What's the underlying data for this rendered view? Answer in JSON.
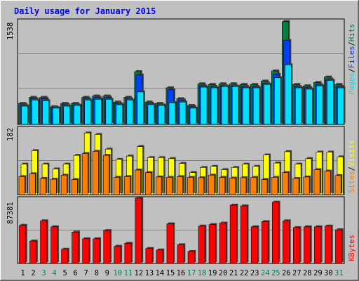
{
  "colors": {
    "background": "#C0C0C0",
    "plot_background": "#C0C0C0",
    "title": "#0000FF",
    "hits": "#008040",
    "files": "#0040FF",
    "pages": "#00E0FF",
    "visits": "#FFFF00",
    "sites": "#FF8000",
    "kbytes": "#FF0000",
    "weekend_label": "#00805C",
    "weekday_label": "#000000"
  },
  "chart_data": [
    {
      "type": "bar",
      "title": "Daily usage for January 2015",
      "ylabel_parts": [
        "Pages",
        "Files",
        "Hits"
      ],
      "ymax_label": "1538",
      "ylim": [
        0,
        1538
      ],
      "categories": [
        "1",
        "2",
        "3",
        "4",
        "5",
        "6",
        "7",
        "8",
        "9",
        "10",
        "11",
        "12",
        "13",
        "14",
        "15",
        "16",
        "17",
        "18",
        "19",
        "20",
        "21",
        "22",
        "23",
        "24",
        "25",
        "26",
        "27",
        "28",
        "29",
        "30",
        "31"
      ],
      "weekend_days": [
        3,
        4,
        10,
        11,
        17,
        18,
        24,
        25,
        31
      ],
      "series": [
        {
          "name": "Hits",
          "values": [
            310,
            400,
            400,
            260,
            310,
            310,
            400,
            420,
            420,
            330,
            400,
            780,
            330,
            310,
            540,
            380,
            280,
            600,
            590,
            600,
            600,
            590,
            590,
            640,
            790,
            1520,
            590,
            570,
            620,
            700,
            590
          ]
        },
        {
          "name": "Files",
          "values": [
            290,
            380,
            380,
            250,
            290,
            290,
            380,
            400,
            400,
            310,
            380,
            730,
            310,
            290,
            510,
            360,
            260,
            570,
            560,
            570,
            570,
            560,
            560,
            610,
            740,
            1240,
            560,
            540,
            590,
            670,
            560
          ]
        },
        {
          "name": "Pages",
          "values": [
            270,
            360,
            350,
            240,
            270,
            280,
            360,
            370,
            370,
            290,
            360,
            480,
            290,
            280,
            320,
            330,
            240,
            550,
            540,
            560,
            560,
            540,
            540,
            590,
            690,
            880,
            540,
            520,
            570,
            650,
            540
          ]
        }
      ]
    },
    {
      "type": "bar",
      "ylabel_parts": [
        "Sites",
        "Visits"
      ],
      "ymax_label": "182",
      "ylim": [
        0,
        182
      ],
      "categories": [
        "1",
        "2",
        "3",
        "4",
        "5",
        "6",
        "7",
        "8",
        "9",
        "10",
        "11",
        "12",
        "13",
        "14",
        "15",
        "16",
        "17",
        "18",
        "19",
        "20",
        "21",
        "22",
        "23",
        "24",
        "25",
        "26",
        "27",
        "28",
        "29",
        "30",
        "31"
      ],
      "series": [
        {
          "name": "Visits",
          "values": [
            83,
            120,
            83,
            70,
            83,
            107,
            168,
            164,
            124,
            96,
            105,
            131,
            101,
            101,
            98,
            85,
            60,
            74,
            77,
            68,
            74,
            83,
            77,
            108,
            86,
            117,
            83,
            98,
            116,
            116,
            103
          ]
        },
        {
          "name": "Sites",
          "values": [
            49,
            57,
            44,
            42,
            53,
            41,
            112,
            118,
            107,
            47,
            49,
            67,
            60,
            48,
            47,
            49,
            47,
            46,
            53,
            47,
            45,
            46,
            47,
            41,
            47,
            60,
            44,
            48,
            68,
            64,
            52
          ]
        }
      ]
    },
    {
      "type": "bar",
      "ylabel_parts": [
        "KBytes"
      ],
      "ymax_label": "87381",
      "ylim": [
        0,
        87381
      ],
      "categories": [
        "1",
        "2",
        "3",
        "4",
        "5",
        "6",
        "7",
        "8",
        "9",
        "10",
        "11",
        "12",
        "13",
        "14",
        "15",
        "16",
        "17",
        "18",
        "19",
        "20",
        "21",
        "22",
        "23",
        "24",
        "25",
        "26",
        "27",
        "28",
        "29",
        "30",
        "31"
      ],
      "series": [
        {
          "name": "KBytes",
          "values": [
            51000,
            30000,
            57000,
            49000,
            19000,
            42000,
            33000,
            33000,
            44000,
            23000,
            27000,
            87381,
            20000,
            18000,
            53000,
            25000,
            16000,
            50000,
            52000,
            54000,
            78000,
            77000,
            49000,
            56000,
            82000,
            57000,
            48000,
            49000,
            49000,
            50000,
            45000
          ]
        }
      ]
    }
  ]
}
